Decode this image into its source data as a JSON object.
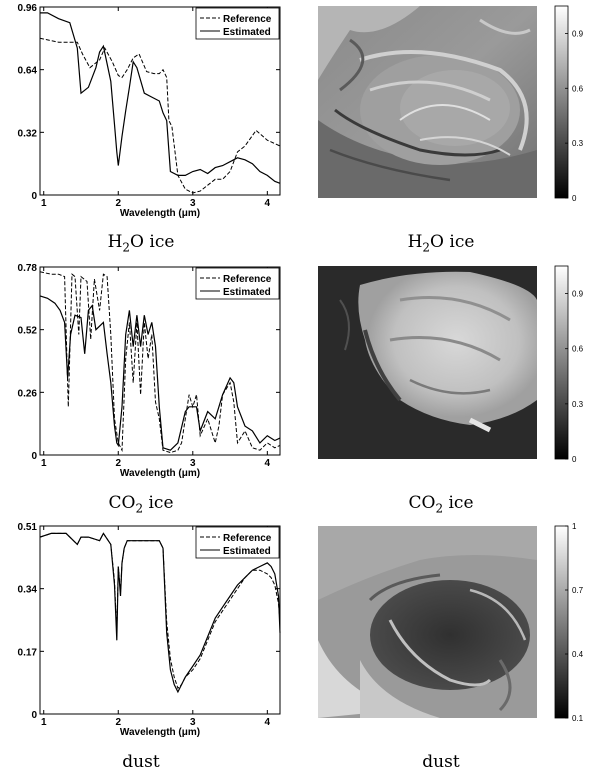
{
  "chart_data": [
    {
      "type": "line",
      "xlabel": "Wavelength (μm)",
      "xlim": [
        0.95,
        4.17
      ],
      "ylim": [
        0,
        0.96
      ],
      "xticks": [
        "1",
        "2",
        "3",
        "4"
      ],
      "yticks": [
        "0",
        "0.32",
        "0.64",
        "0.96"
      ],
      "legend": "top-right",
      "series": [
        {
          "name": "Reference",
          "style": "dashed",
          "x": [
            0.95,
            1.2,
            1.45,
            1.52,
            1.62,
            1.75,
            1.82,
            1.92,
            2.0,
            2.05,
            2.12,
            2.2,
            2.28,
            2.38,
            2.48,
            2.55,
            2.6,
            2.65,
            2.68,
            2.72,
            2.8,
            2.9,
            3.0,
            3.1,
            3.2,
            3.3,
            3.4,
            3.5,
            3.6,
            3.7,
            3.85,
            4.0,
            4.17
          ],
          "y": [
            0.8,
            0.78,
            0.78,
            0.72,
            0.65,
            0.69,
            0.75,
            0.68,
            0.61,
            0.6,
            0.64,
            0.7,
            0.72,
            0.63,
            0.62,
            0.62,
            0.64,
            0.6,
            0.38,
            0.35,
            0.1,
            0.03,
            0.01,
            0.02,
            0.05,
            0.08,
            0.08,
            0.12,
            0.22,
            0.25,
            0.33,
            0.28,
            0.25
          ]
        },
        {
          "name": "Estimated",
          "style": "solid",
          "x": [
            0.95,
            1.05,
            1.2,
            1.35,
            1.45,
            1.5,
            1.6,
            1.7,
            1.75,
            1.8,
            1.9,
            1.95,
            1.98,
            2.0,
            2.05,
            2.1,
            2.15,
            2.2,
            2.25,
            2.35,
            2.45,
            2.55,
            2.6,
            2.65,
            2.7,
            2.8,
            2.9,
            3.0,
            3.1,
            3.2,
            3.3,
            3.4,
            3.5,
            3.6,
            3.7,
            3.8,
            3.9,
            4.0,
            4.1,
            4.17
          ],
          "y": [
            0.93,
            0.93,
            0.9,
            0.88,
            0.75,
            0.52,
            0.55,
            0.65,
            0.73,
            0.76,
            0.58,
            0.36,
            0.22,
            0.15,
            0.3,
            0.43,
            0.55,
            0.68,
            0.65,
            0.52,
            0.5,
            0.48,
            0.42,
            0.38,
            0.12,
            0.1,
            0.1,
            0.12,
            0.13,
            0.11,
            0.14,
            0.15,
            0.17,
            0.19,
            0.18,
            0.16,
            0.12,
            0.1,
            0.07,
            0.06
          ]
        }
      ]
    },
    {
      "type": "line",
      "xlabel": "Wavelength (μm)",
      "xlim": [
        0.95,
        4.17
      ],
      "ylim": [
        0,
        0.78
      ],
      "xticks": [
        "1",
        "2",
        "3",
        "4"
      ],
      "yticks": [
        "0",
        "0.26",
        "0.52",
        "0.78"
      ],
      "legend": "top-right",
      "series": [
        {
          "name": "Reference",
          "style": "dashed",
          "x": [
            0.95,
            1.1,
            1.2,
            1.28,
            1.33,
            1.38,
            1.42,
            1.47,
            1.5,
            1.58,
            1.63,
            1.68,
            1.75,
            1.8,
            1.85,
            1.9,
            1.95,
            2.0,
            2.05,
            2.1,
            2.15,
            2.2,
            2.25,
            2.3,
            2.35,
            2.4,
            2.45,
            2.5,
            2.55,
            2.6,
            2.7,
            2.8,
            2.85,
            2.9,
            2.95,
            3.0,
            3.05,
            3.1,
            3.2,
            3.3,
            3.35,
            3.4,
            3.5,
            3.55,
            3.6,
            3.7,
            3.8,
            3.9,
            4.0,
            4.1,
            4.17
          ],
          "y": [
            0.76,
            0.75,
            0.75,
            0.74,
            0.2,
            0.75,
            0.74,
            0.5,
            0.74,
            0.72,
            0.48,
            0.73,
            0.6,
            0.75,
            0.74,
            0.5,
            0.15,
            0.05,
            0.02,
            0.4,
            0.55,
            0.3,
            0.55,
            0.25,
            0.55,
            0.4,
            0.5,
            0.22,
            0.15,
            0.02,
            0.01,
            0.02,
            0.05,
            0.15,
            0.25,
            0.2,
            0.25,
            0.08,
            0.15,
            0.05,
            0.12,
            0.25,
            0.3,
            0.22,
            0.05,
            0.1,
            0.03,
            0.02,
            0.05,
            0.03,
            0.04
          ]
        },
        {
          "name": "Estimated",
          "style": "solid",
          "x": [
            0.95,
            1.05,
            1.15,
            1.22,
            1.28,
            1.32,
            1.36,
            1.42,
            1.5,
            1.55,
            1.6,
            1.65,
            1.7,
            1.8,
            1.85,
            1.9,
            1.95,
            1.98,
            2.0,
            2.05,
            2.1,
            2.15,
            2.2,
            2.25,
            2.3,
            2.35,
            2.4,
            2.45,
            2.5,
            2.55,
            2.6,
            2.7,
            2.8,
            2.9,
            2.95,
            3.0,
            3.05,
            3.1,
            3.2,
            3.3,
            3.35,
            3.4,
            3.5,
            3.55,
            3.6,
            3.7,
            3.8,
            3.9,
            4.0,
            4.1,
            4.17
          ],
          "y": [
            0.66,
            0.65,
            0.63,
            0.6,
            0.55,
            0.32,
            0.5,
            0.58,
            0.57,
            0.42,
            0.6,
            0.62,
            0.52,
            0.55,
            0.42,
            0.3,
            0.12,
            0.05,
            0.04,
            0.2,
            0.5,
            0.6,
            0.45,
            0.58,
            0.45,
            0.58,
            0.5,
            0.55,
            0.45,
            0.2,
            0.03,
            0.02,
            0.05,
            0.18,
            0.2,
            0.2,
            0.2,
            0.1,
            0.18,
            0.15,
            0.2,
            0.25,
            0.32,
            0.3,
            0.2,
            0.12,
            0.1,
            0.05,
            0.08,
            0.06,
            0.07
          ]
        }
      ]
    },
    {
      "type": "line",
      "xlabel": "Wavelength (μm)",
      "xlim": [
        0.95,
        4.17
      ],
      "ylim": [
        0,
        0.51
      ],
      "xticks": [
        "1",
        "2",
        "3",
        "4"
      ],
      "yticks": [
        "0",
        "0.17",
        "0.34",
        "0.51"
      ],
      "legend": "top-right",
      "series": [
        {
          "name": "Reference",
          "style": "dashed",
          "x": [
            0.95,
            1.1,
            1.3,
            1.45,
            1.5,
            1.6,
            1.75,
            1.8,
            1.9,
            1.95,
            1.98,
            2.0,
            2.03,
            2.05,
            2.08,
            2.12,
            2.2,
            2.3,
            2.4,
            2.55,
            2.6,
            2.65,
            2.7,
            2.75,
            2.8,
            2.85,
            2.9,
            3.0,
            3.1,
            3.2,
            3.3,
            3.4,
            3.5,
            3.6,
            3.7,
            3.8,
            3.9,
            4.0,
            4.05,
            4.1,
            4.15,
            4.17
          ],
          "y": [
            0.48,
            0.49,
            0.49,
            0.46,
            0.48,
            0.48,
            0.47,
            0.49,
            0.46,
            0.36,
            0.22,
            0.4,
            0.33,
            0.41,
            0.45,
            0.47,
            0.47,
            0.47,
            0.47,
            0.47,
            0.45,
            0.25,
            0.15,
            0.1,
            0.07,
            0.08,
            0.1,
            0.12,
            0.15,
            0.2,
            0.25,
            0.28,
            0.31,
            0.34,
            0.37,
            0.39,
            0.39,
            0.38,
            0.37,
            0.35,
            0.3,
            0.25
          ]
        },
        {
          "name": "Estimated",
          "style": "solid",
          "x": [
            0.95,
            1.1,
            1.3,
            1.45,
            1.5,
            1.6,
            1.75,
            1.8,
            1.9,
            1.95,
            1.98,
            2.0,
            2.03,
            2.05,
            2.08,
            2.12,
            2.2,
            2.3,
            2.4,
            2.55,
            2.6,
            2.65,
            2.7,
            2.75,
            2.8,
            2.85,
            2.9,
            3.0,
            3.1,
            3.2,
            3.3,
            3.4,
            3.5,
            3.6,
            3.7,
            3.8,
            3.9,
            4.0,
            4.05,
            4.1,
            4.15,
            4.17
          ],
          "y": [
            0.48,
            0.49,
            0.49,
            0.46,
            0.48,
            0.48,
            0.47,
            0.49,
            0.46,
            0.35,
            0.2,
            0.4,
            0.32,
            0.41,
            0.45,
            0.47,
            0.47,
            0.47,
            0.47,
            0.47,
            0.45,
            0.22,
            0.12,
            0.08,
            0.06,
            0.08,
            0.1,
            0.13,
            0.16,
            0.21,
            0.26,
            0.29,
            0.32,
            0.35,
            0.37,
            0.39,
            0.4,
            0.41,
            0.4,
            0.38,
            0.32,
            0.22
          ]
        }
      ]
    }
  ],
  "maps": [
    {
      "colorbar_ticks": [
        "0",
        "0.3",
        "0.6",
        "0.9"
      ],
      "colorbar_values": [
        0,
        0.3,
        0.6,
        0.9
      ],
      "colorbar_range": [
        0,
        1.05
      ]
    },
    {
      "colorbar_ticks": [
        "0",
        "0.3",
        "0.6",
        "0.9"
      ],
      "colorbar_values": [
        0,
        0.3,
        0.6,
        0.9
      ],
      "colorbar_range": [
        0,
        1.05
      ]
    },
    {
      "colorbar_ticks": [
        "0.1",
        "0.4",
        "0.7",
        "1"
      ],
      "colorbar_values": [
        0.1,
        0.4,
        0.7,
        1.0
      ],
      "colorbar_range": [
        0.1,
        1.0
      ]
    }
  ],
  "captions": {
    "row1_left": {
      "base": "H",
      "sub": "2",
      "rest": "O ice"
    },
    "row1_right": {
      "base": "H",
      "sub": "2",
      "rest": "O ice"
    },
    "row2_left": {
      "base": "CO",
      "sub": "2",
      "rest": " ice"
    },
    "row2_right": {
      "base": "CO",
      "sub": "2",
      "rest": " ice"
    },
    "row3_left": "dust",
    "row3_right": "dust"
  }
}
